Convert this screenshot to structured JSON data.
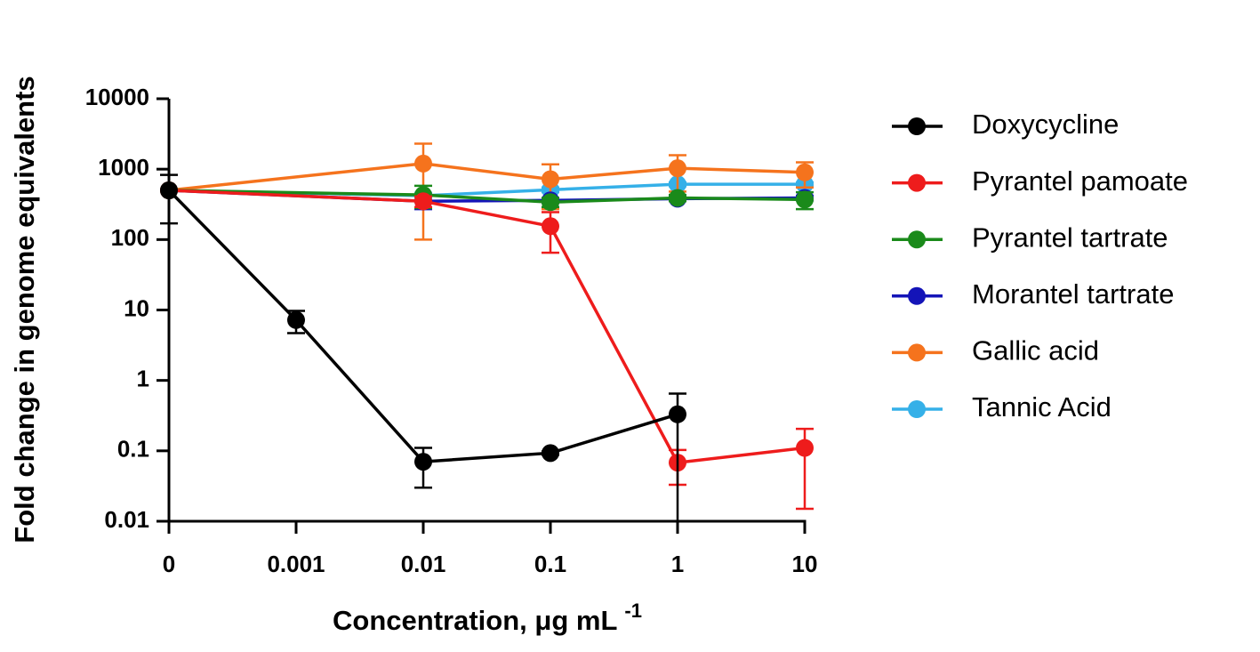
{
  "chart_data": {
    "type": "line",
    "log_y": true,
    "x_label": "Concentration, μg mL",
    "x_label_superscript": "-1",
    "y_label": "Fold change in genome equivalents",
    "categories": [
      "0",
      "0.001",
      "0.01",
      "0.1",
      "1",
      "10"
    ],
    "ylim": [
      0.01,
      10000
    ],
    "yticks": [
      0.01,
      0.1,
      1,
      10,
      100,
      1000,
      10000
    ],
    "series": [
      {
        "name": "Doxycycline",
        "color": "#000000",
        "x": [
          "0",
          "0.001",
          "0.01",
          "0.1",
          "1"
        ],
        "values": [
          500,
          7.2,
          0.07,
          0.093,
          0.33
        ],
        "errors": [
          330,
          2.5,
          0.04,
          0.005,
          0.32
        ]
      },
      {
        "name": "Pyrantel pamoate",
        "color": "#ee1c1c",
        "x": [
          "0",
          "0.01",
          "0.1",
          "1",
          "10"
        ],
        "values": [
          500,
          350,
          155,
          0.068,
          0.11
        ],
        "errors": [
          0,
          60,
          90,
          0.035,
          0.095
        ]
      },
      {
        "name": "Pyrantel tartrate",
        "color": "#1a8a1a",
        "x": [
          "0",
          "0.01",
          "0.1",
          "1",
          "10"
        ],
        "values": [
          500,
          430,
          340,
          390,
          370
        ],
        "errors": [
          0,
          150,
          50,
          40,
          100
        ]
      },
      {
        "name": "Morantel tartrate",
        "color": "#1414b8",
        "x": [
          "0",
          "0.01",
          "0.1",
          "1",
          "10"
        ],
        "values": [
          500,
          350,
          360,
          380,
          390
        ],
        "errors": [
          0,
          80,
          30,
          30,
          30
        ]
      },
      {
        "name": "Gallic acid",
        "color": "#f5731d",
        "x": [
          "0",
          "0.01",
          "0.1",
          "1",
          "10"
        ],
        "values": [
          500,
          1200,
          720,
          1030,
          900
        ],
        "errors": [
          0,
          1100,
          450,
          550,
          350
        ]
      },
      {
        "name": "Tannic Acid",
        "color": "#35b0e8",
        "x": [
          "0",
          "0.01",
          "0.1",
          "1",
          "10"
        ],
        "values": [
          500,
          420,
          510,
          610,
          610
        ],
        "errors": [
          0,
          40,
          40,
          40,
          40
        ]
      }
    ]
  }
}
